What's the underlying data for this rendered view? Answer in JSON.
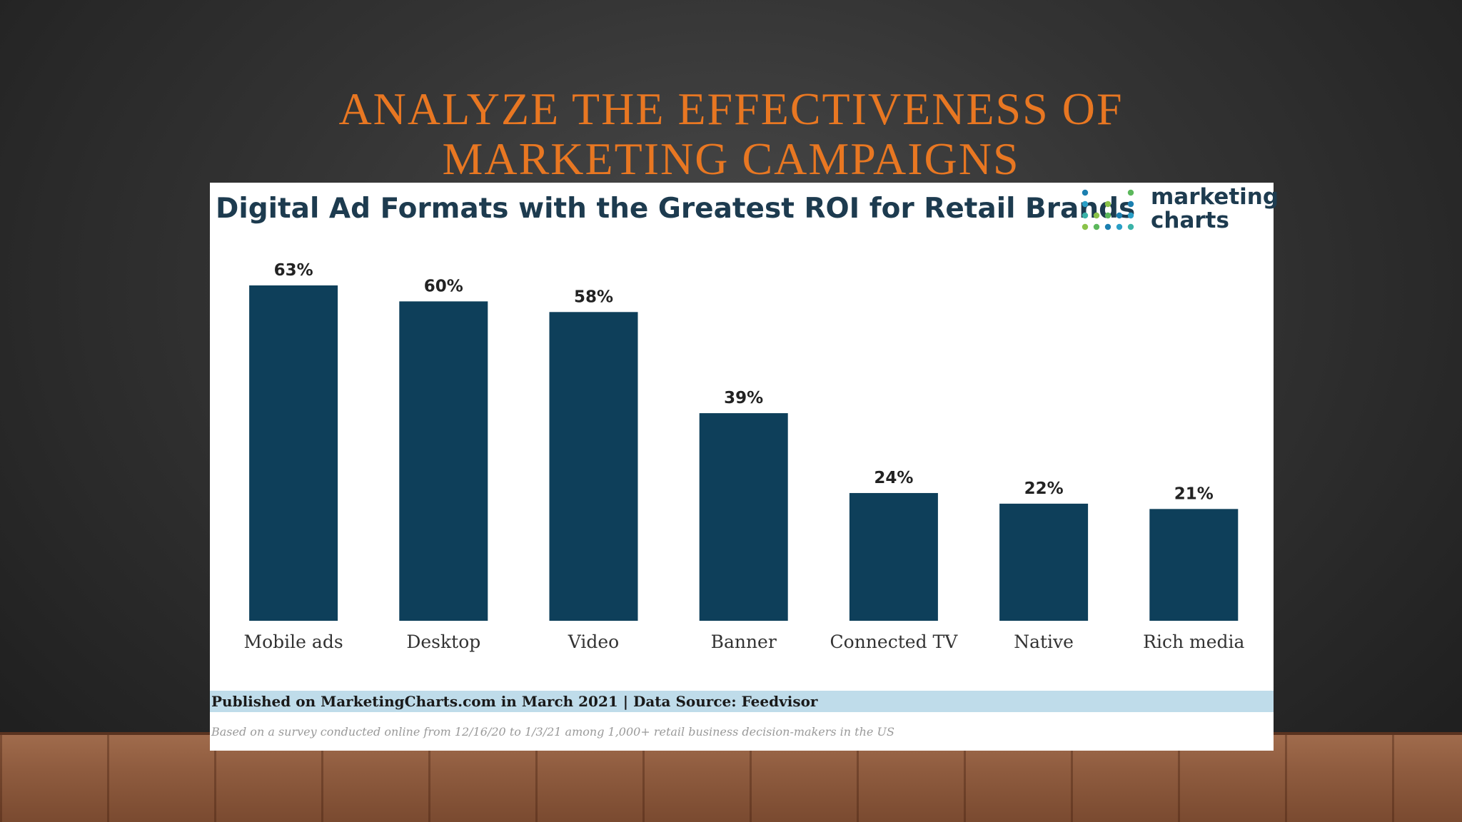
{
  "slide": {
    "title_line1": "ANALYZE THE EFFECTIVENESS OF",
    "title_line2": "MARKETING CAMPAIGNS"
  },
  "logo": {
    "line1": "marketing",
    "line2": "charts"
  },
  "footer": {
    "published": "Published on MarketingCharts.com in March 2021 | Data Source: Feedvisor",
    "note": "Based on a survey conducted online from 12/16/20 to 1/3/21 among 1,000+ retail business decision-makers in the US"
  },
  "colors": {
    "bar": "#0e3f5a",
    "title": "#e87722",
    "footer_band": "#bfdcea"
  },
  "chart_data": {
    "type": "bar",
    "title": "Digital Ad Formats with the Greatest ROI for Retail Brands",
    "categories": [
      "Mobile ads",
      "Desktop",
      "Video",
      "Banner",
      "Connected TV",
      "Native",
      "Rich media"
    ],
    "values": [
      63,
      60,
      58,
      39,
      24,
      22,
      21
    ],
    "value_labels": [
      "63%",
      "60%",
      "58%",
      "39%",
      "24%",
      "22%",
      "21%"
    ],
    "xlabel": "",
    "ylabel": "",
    "ylim": [
      0,
      63
    ],
    "grid": false,
    "legend": "none"
  }
}
